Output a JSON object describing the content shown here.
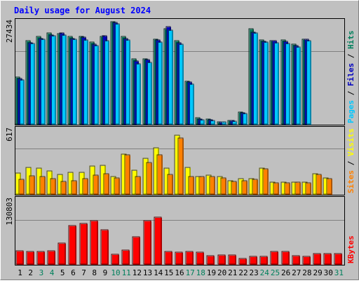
{
  "chart_data": [
    {
      "type": "bar",
      "title": "Daily usage for August 2024",
      "panel": "hits-files-pages",
      "ymax_label": "27434",
      "ylim": [
        0,
        27434
      ],
      "ylabel_parts": [
        {
          "text": "Pages",
          "color": "#00c8ff"
        },
        {
          "text": " / ",
          "color": "#000000"
        },
        {
          "text": "Files",
          "color": "#0000c0"
        },
        {
          "text": " / ",
          "color": "#000000"
        },
        {
          "text": "Hits",
          "color": "#00805c"
        }
      ],
      "categories": [
        "1",
        "2",
        "3",
        "4",
        "5",
        "6",
        "7",
        "8",
        "9",
        "10",
        "11",
        "12",
        "13",
        "14",
        "15",
        "16",
        "17",
        "18",
        "19",
        "20",
        "21",
        "22",
        "23",
        "24",
        "25",
        "26",
        "27",
        "28",
        "29",
        "30",
        "31"
      ],
      "series": [
        {
          "name": "Hits",
          "color": "#00805c",
          "values": [
            12500,
            22300,
            23400,
            24400,
            24200,
            23400,
            23400,
            22000,
            23400,
            27400,
            23400,
            17500,
            17400,
            22800,
            25600,
            22400,
            11500,
            1600,
            1400,
            650,
            1000,
            3200,
            25600,
            22500,
            22400,
            22500,
            21400,
            22800,
            0,
            0,
            0
          ]
        },
        {
          "name": "Files",
          "color": "#0000c0",
          "values": [
            12300,
            21800,
            23000,
            23800,
            24400,
            23000,
            23300,
            21500,
            23600,
            27300,
            23000,
            17000,
            17200,
            22500,
            26200,
            21800,
            11200,
            1400,
            1200,
            600,
            900,
            3100,
            24600,
            22200,
            22300,
            22200,
            21000,
            22800,
            0,
            0,
            0
          ]
        },
        {
          "name": "Pages",
          "color": "#00c8ff",
          "values": [
            11900,
            21600,
            22700,
            23600,
            23800,
            22800,
            22600,
            21100,
            22400,
            26800,
            22600,
            16200,
            16600,
            22000,
            25200,
            21400,
            10800,
            1200,
            1000,
            500,
            800,
            2900,
            24400,
            22000,
            21800,
            21600,
            20600,
            22400,
            0,
            0,
            0
          ]
        }
      ]
    },
    {
      "type": "bar",
      "panel": "visits-sites",
      "ymax_label": "617",
      "ylim": [
        0,
        617
      ],
      "ylabel_parts": [
        {
          "text": "Sites",
          "color": "#ff8000"
        },
        {
          "text": " / ",
          "color": "#000000"
        },
        {
          "text": "Visits",
          "color": "#ffff00"
        }
      ],
      "categories": [
        "1",
        "2",
        "3",
        "4",
        "5",
        "6",
        "7",
        "8",
        "9",
        "10",
        "11",
        "12",
        "13",
        "14",
        "15",
        "16",
        "17",
        "18",
        "19",
        "20",
        "21",
        "22",
        "23",
        "24",
        "25",
        "26",
        "27",
        "28",
        "29",
        "30",
        "31"
      ],
      "series": [
        {
          "name": "Visits",
          "color": "#ffff00",
          "values": [
            200,
            255,
            245,
            220,
            190,
            210,
            205,
            270,
            275,
            165,
            385,
            230,
            345,
            445,
            250,
            560,
            255,
            170,
            180,
            170,
            130,
            150,
            145,
            250,
            115,
            115,
            115,
            115,
            195,
            155,
            0
          ]
        },
        {
          "name": "Sites",
          "color": "#ff8000",
          "values": [
            140,
            175,
            165,
            150,
            120,
            130,
            145,
            180,
            195,
            155,
            375,
            170,
            305,
            375,
            185,
            535,
            170,
            165,
            165,
            155,
            120,
            125,
            140,
            240,
            105,
            110,
            115,
            110,
            190,
            150,
            0
          ]
        }
      ]
    },
    {
      "type": "bar",
      "panel": "kbytes",
      "ymax_label": "130803",
      "ylim": [
        0,
        130803
      ],
      "ylabel_parts": [
        {
          "text": "KBytes",
          "color": "#ff0000"
        }
      ],
      "categories": [
        "1",
        "2",
        "3",
        "4",
        "5",
        "6",
        "7",
        "8",
        "9",
        "10",
        "11",
        "12",
        "13",
        "14",
        "15",
        "16",
        "17",
        "18",
        "19",
        "20",
        "21",
        "22",
        "23",
        "24",
        "25",
        "26",
        "27",
        "28",
        "29",
        "30",
        "31"
      ],
      "series": [
        {
          "name": "KBytes",
          "color": "#ff0000",
          "values": [
            27000,
            26000,
            26000,
            27000,
            42000,
            78000,
            82000,
            88000,
            70000,
            20000,
            29000,
            55000,
            88000,
            95000,
            25000,
            24000,
            25000,
            24000,
            17000,
            19000,
            19000,
            11000,
            16000,
            16000,
            25000,
            25000,
            17000,
            16000,
            22000,
            21000,
            21000
          ]
        }
      ]
    }
  ],
  "x_labels": [
    {
      "text": "1",
      "weekend": false
    },
    {
      "text": "2",
      "weekend": false
    },
    {
      "text": "3",
      "weekend": true
    },
    {
      "text": "4",
      "weekend": true
    },
    {
      "text": "5",
      "weekend": false
    },
    {
      "text": "6",
      "weekend": false
    },
    {
      "text": "7",
      "weekend": false
    },
    {
      "text": "8",
      "weekend": false
    },
    {
      "text": "9",
      "weekend": false
    },
    {
      "text": "10",
      "weekend": true
    },
    {
      "text": "11",
      "weekend": true
    },
    {
      "text": "12",
      "weekend": false
    },
    {
      "text": "13",
      "weekend": false
    },
    {
      "text": "14",
      "weekend": false
    },
    {
      "text": "15",
      "weekend": false
    },
    {
      "text": "16",
      "weekend": false
    },
    {
      "text": "17",
      "weekend": true
    },
    {
      "text": "18",
      "weekend": true
    },
    {
      "text": "19",
      "weekend": false
    },
    {
      "text": "20",
      "weekend": false
    },
    {
      "text": "21",
      "weekend": false
    },
    {
      "text": "22",
      "weekend": false
    },
    {
      "text": "23",
      "weekend": false
    },
    {
      "text": "24",
      "weekend": true
    },
    {
      "text": "25",
      "weekend": true
    },
    {
      "text": "26",
      "weekend": false
    },
    {
      "text": "27",
      "weekend": false
    },
    {
      "text": "28",
      "weekend": false
    },
    {
      "text": "29",
      "weekend": false
    },
    {
      "text": "30",
      "weekend": false
    },
    {
      "text": "31",
      "weekend": true
    }
  ],
  "colors": {
    "background": "#c0c0c0",
    "title": "#0000ff",
    "weekday_label": "#000000",
    "weekend_label": "#00805c",
    "gridline": "#808080",
    "frame_dark": "#808080",
    "frame_light": "#ffffff"
  }
}
